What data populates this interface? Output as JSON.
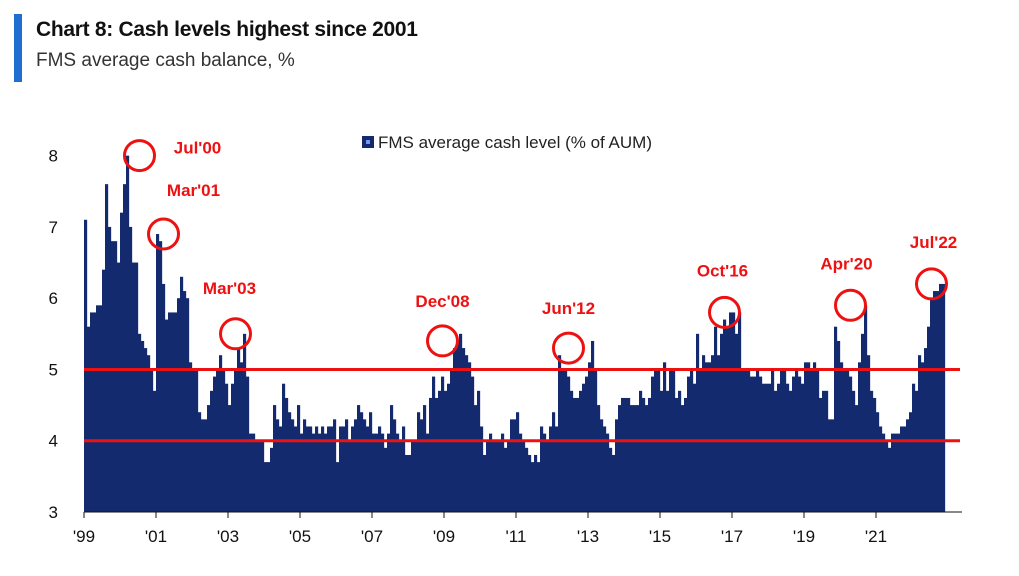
{
  "header": {
    "title": "Chart 8: Cash levels highest since 2001",
    "subtitle": "FMS average cash balance, %"
  },
  "colors": {
    "bar": "#132a6e",
    "accent": "#1f6fd1",
    "highlight": "#ee1111",
    "axis": "#111111"
  },
  "chart_data": {
    "type": "bar",
    "ylim": [
      3,
      8.5
    ],
    "yticks": [
      3,
      4,
      5,
      6,
      7,
      8
    ],
    "xticks": [
      "'99",
      "'01",
      "'03",
      "'05",
      "'07",
      "'09",
      "'11",
      "'13",
      "'15",
      "'17",
      "'19",
      "'21"
    ],
    "grid": false,
    "legend": {
      "label": "FMS average cash level (% of AUM)",
      "position": "top-center"
    },
    "reference_lines": [
      5.0,
      4.0
    ],
    "series": [
      {
        "name": "FMS average cash level (% of AUM)",
        "start": "1999-01",
        "values": [
          7.1,
          5.6,
          5.8,
          5.8,
          5.9,
          5.9,
          6.4,
          7.6,
          7.0,
          6.8,
          6.8,
          6.5,
          7.2,
          7.6,
          8.0,
          7.0,
          6.5,
          6.5,
          5.5,
          5.4,
          5.3,
          5.2,
          5.0,
          4.7,
          6.9,
          6.8,
          6.2,
          5.7,
          5.8,
          5.8,
          5.8,
          6.0,
          6.3,
          6.1,
          6.0,
          5.1,
          5.0,
          5.0,
          4.4,
          4.3,
          4.3,
          4.5,
          4.7,
          4.9,
          5.0,
          5.2,
          5.0,
          4.8,
          4.5,
          4.8,
          5.0,
          5.3,
          5.1,
          5.5,
          4.9,
          4.1,
          4.1,
          4.0,
          4.0,
          4.0,
          3.7,
          3.7,
          3.9,
          4.5,
          4.3,
          4.2,
          4.8,
          4.6,
          4.4,
          4.3,
          4.2,
          4.5,
          4.1,
          4.3,
          4.2,
          4.2,
          4.1,
          4.2,
          4.1,
          4.2,
          4.1,
          4.2,
          4.2,
          4.3,
          3.7,
          4.2,
          4.2,
          4.3,
          4.0,
          4.2,
          4.3,
          4.5,
          4.4,
          4.3,
          4.2,
          4.4,
          4.1,
          4.1,
          4.2,
          4.1,
          3.9,
          4.1,
          4.5,
          4.3,
          4.1,
          4.0,
          4.2,
          3.8,
          3.8,
          4.0,
          4.0,
          4.4,
          4.3,
          4.5,
          4.1,
          4.6,
          4.9,
          4.6,
          4.7,
          4.9,
          4.7,
          4.8,
          5.0,
          5.3,
          5.4,
          5.5,
          5.3,
          5.2,
          5.1,
          4.9,
          4.5,
          4.7,
          4.2,
          3.8,
          4.0,
          4.1,
          4.0,
          4.0,
          4.0,
          4.1,
          3.9,
          4.0,
          4.3,
          4.3,
          4.4,
          4.1,
          4.0,
          3.9,
          3.8,
          3.7,
          3.8,
          3.7,
          4.2,
          4.1,
          4.0,
          4.2,
          4.4,
          4.2,
          5.2,
          5.0,
          5.0,
          4.9,
          4.7,
          4.6,
          4.6,
          4.7,
          4.8,
          4.9,
          5.1,
          5.4,
          5.0,
          4.5,
          4.3,
          4.2,
          4.1,
          3.9,
          3.8,
          4.3,
          4.5,
          4.6,
          4.6,
          4.6,
          4.5,
          4.5,
          4.5,
          4.7,
          4.6,
          4.5,
          4.6,
          4.9,
          5.0,
          5.0,
          4.7,
          5.1,
          4.7,
          5.0,
          5.0,
          4.6,
          4.7,
          4.5,
          4.6,
          4.9,
          5.0,
          4.8,
          5.5,
          5.0,
          5.2,
          5.1,
          5.1,
          5.2,
          5.6,
          5.2,
          5.5,
          5.7,
          5.6,
          5.8,
          5.8,
          5.5,
          5.8,
          5.0,
          5.0,
          5.0,
          4.9,
          4.9,
          5.0,
          4.9,
          4.8,
          4.8,
          4.8,
          5.0,
          4.7,
          4.8,
          5.0,
          5.0,
          4.8,
          4.7,
          4.9,
          5.0,
          4.9,
          4.8,
          5.1,
          5.1,
          5.0,
          5.1,
          5.0,
          4.6,
          4.7,
          4.7,
          4.3,
          4.3,
          5.6,
          5.4,
          5.1,
          5.0,
          5.0,
          4.9,
          4.7,
          4.5,
          5.1,
          5.5,
          5.9,
          5.2,
          4.7,
          4.6,
          4.4,
          4.2,
          4.1,
          4.0,
          3.9,
          4.1,
          4.1,
          4.1,
          4.2,
          4.2,
          4.3,
          4.4,
          4.8,
          4.7,
          5.2,
          5.1,
          5.3,
          5.6,
          6.0,
          6.1,
          6.1,
          6.2,
          6.2
        ]
      }
    ],
    "annotations": [
      {
        "label": "Jul'00",
        "date": "2000-07",
        "value": 8.0
      },
      {
        "label": "Mar'01",
        "date": "2001-03",
        "value": 6.9
      },
      {
        "label": "Mar'03",
        "date": "2003-03",
        "value": 5.5
      },
      {
        "label": "Dec'08",
        "date": "2008-12",
        "value": 5.4
      },
      {
        "label": "Jun'12",
        "date": "2012-06",
        "value": 5.3
      },
      {
        "label": "Oct'16",
        "date": "2016-10",
        "value": 5.8
      },
      {
        "label": "Apr'20",
        "date": "2020-04",
        "value": 5.9
      },
      {
        "label": "Jul'22",
        "date": "2022-07",
        "value": 6.2
      }
    ]
  }
}
